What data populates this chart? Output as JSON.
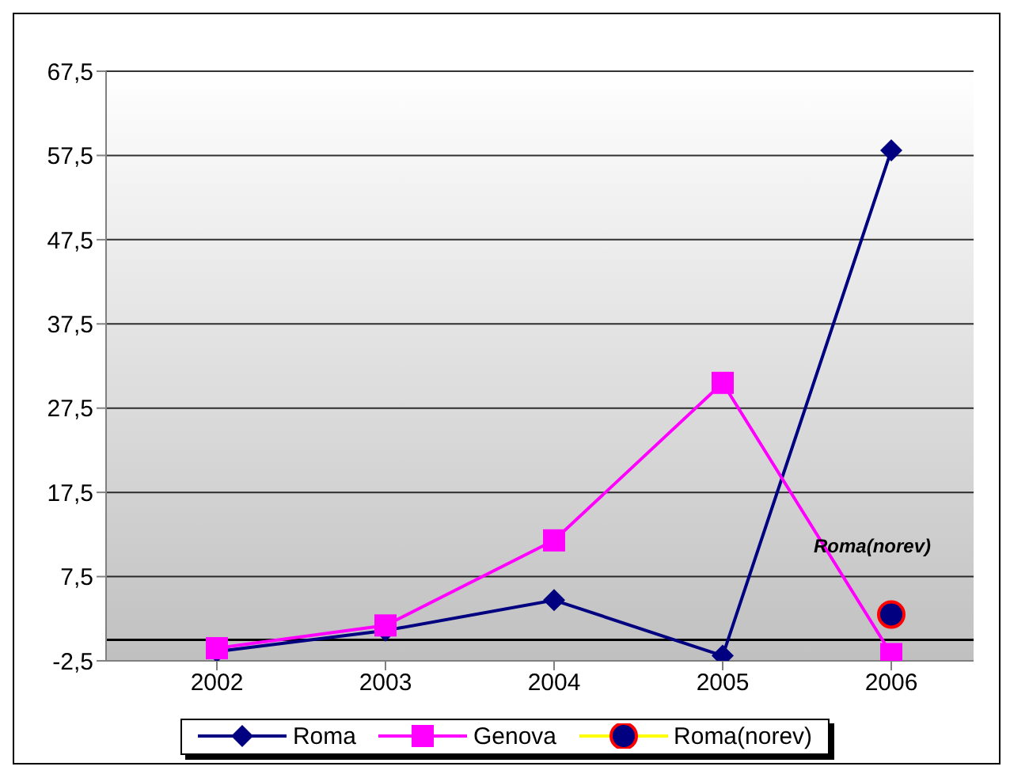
{
  "chart_data": {
    "type": "line",
    "categories": [
      "2002",
      "2003",
      "2004",
      "2005",
      "2006"
    ],
    "series": [
      {
        "name": "Roma",
        "color": "#000080",
        "marker": "diamond",
        "values": [
          -1.4,
          1.1,
          4.7,
          -1.9,
          58.1
        ]
      },
      {
        "name": "Genova",
        "color": "#ff00ff",
        "marker": "square",
        "values": [
          -1.0,
          1.7,
          11.8,
          30.5,
          -1.7
        ]
      },
      {
        "name": "Roma(norev)",
        "color": "#000080",
        "marker": "circle",
        "values": [
          null,
          null,
          null,
          null,
          3.0
        ]
      }
    ],
    "ylim": [
      -2.5,
      67.5
    ],
    "yticks": [
      {
        "value": -2.5,
        "label": "-2,5"
      },
      {
        "value": 7.5,
        "label": "7,5"
      },
      {
        "value": 17.5,
        "label": "17,5"
      },
      {
        "value": 27.5,
        "label": "27,5"
      },
      {
        "value": 37.5,
        "label": "37,5"
      },
      {
        "value": 47.5,
        "label": "47,5"
      },
      {
        "value": 57.5,
        "label": "57,5"
      },
      {
        "value": 67.5,
        "label": "67,5"
      }
    ],
    "grid": "y",
    "ref_lines": [
      {
        "axis": "y",
        "value": 0,
        "color": "#000000"
      }
    ],
    "annotations": [
      "Roma(norev)"
    ],
    "legend": "bottom"
  }
}
